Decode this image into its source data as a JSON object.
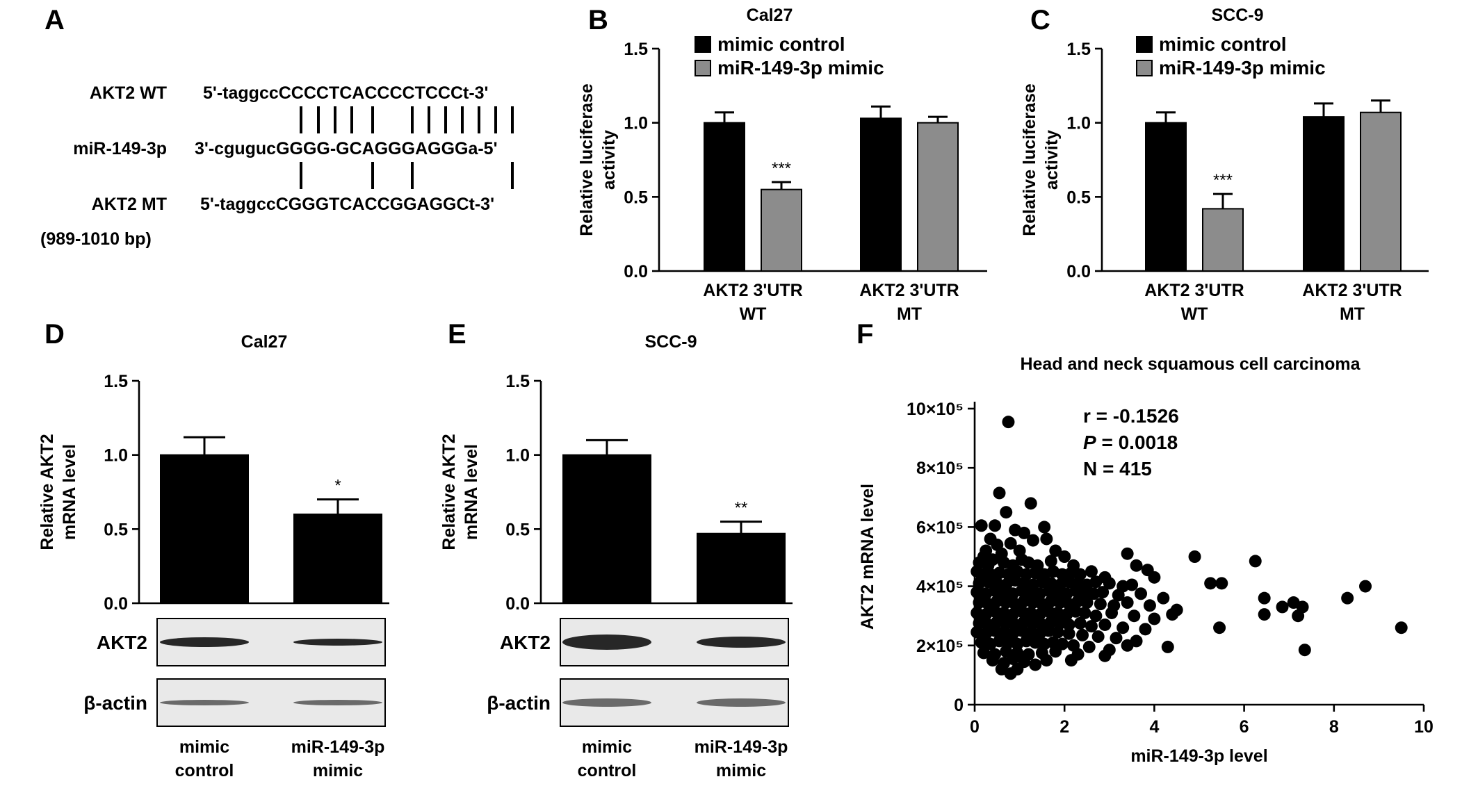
{
  "colors": {
    "control": "#000000",
    "mimic": "#8c8c8c",
    "text": "#000000"
  },
  "panels": {
    "A": {
      "letter": "A",
      "rows": [
        {
          "label": "AKT2 WT",
          "sequence": "5'-taggccCCCCTCACCCCTCCCt-3'"
        },
        {
          "label": "miR-149-3p",
          "sequence": "3'-cgugucGGGG-GCAGGGAGGGa-5'"
        },
        {
          "label": "AKT2 MT",
          "sequence": "5'-taggccCGGGTCACCGGAGGCt-3'"
        }
      ],
      "mt_range": "(989-1010 bp)"
    },
    "B": {
      "letter": "B"
    },
    "C": {
      "letter": "C"
    },
    "D": {
      "letter": "D",
      "blot_labels": [
        "AKT2",
        "β-actin"
      ],
      "xcat_lines": [
        [
          "mimic",
          "control"
        ],
        [
          "miR-149-3p",
          "mimic"
        ]
      ]
    },
    "E": {
      "letter": "E",
      "blot_labels": [
        "AKT2",
        "β-actin"
      ],
      "xcat_lines": [
        [
          "mimic",
          "control"
        ],
        [
          "miR-149-3p",
          "mimic"
        ]
      ]
    },
    "F": {
      "letter": "F",
      "stats": {
        "r": "r = -0.1526",
        "p_italic": "P",
        "p_value": " = 0.0018",
        "n": "N = 415"
      }
    }
  },
  "chart_data": [
    {
      "id": "B",
      "type": "bar",
      "title": "Cal27",
      "ylabel": [
        "Relative luciferase",
        "activity"
      ],
      "xlabel": "",
      "ylim": [
        0,
        1.5
      ],
      "yticks": [
        "0.0",
        "0.5",
        "1.0",
        "1.5"
      ],
      "categories": [
        [
          "AKT2 3'UTR",
          "WT"
        ],
        [
          "AKT2 3'UTR",
          "MT"
        ]
      ],
      "series": [
        {
          "name": "mimic control",
          "values": [
            1.0,
            1.03
          ],
          "err": [
            0.07,
            0.08
          ]
        },
        {
          "name": "miR-149-3p mimic",
          "values": [
            0.55,
            1.0
          ],
          "err": [
            0.05,
            0.04
          ]
        }
      ],
      "significance": [
        {
          "category": 0,
          "series": 1,
          "label": "***"
        }
      ],
      "legend": "top-left"
    },
    {
      "id": "C",
      "type": "bar",
      "title": "SCC-9",
      "ylabel": [
        "Relative luciferase",
        "activity"
      ],
      "xlabel": "",
      "ylim": [
        0,
        1.5
      ],
      "yticks": [
        "0.0",
        "0.5",
        "1.0",
        "1.5"
      ],
      "categories": [
        [
          "AKT2 3'UTR",
          "WT"
        ],
        [
          "AKT2 3'UTR",
          "MT"
        ]
      ],
      "series": [
        {
          "name": "mimic control",
          "values": [
            1.0,
            1.04
          ],
          "err": [
            0.07,
            0.09
          ]
        },
        {
          "name": "miR-149-3p mimic",
          "values": [
            0.42,
            1.07
          ],
          "err": [
            0.1,
            0.08
          ]
        }
      ],
      "significance": [
        {
          "category": 0,
          "series": 1,
          "label": "***"
        }
      ],
      "legend": "top-left"
    },
    {
      "id": "D",
      "type": "bar",
      "title": "Cal27",
      "ylabel": [
        "Relative AKT2",
        "mRNA level"
      ],
      "xlabel": "",
      "ylim": [
        0,
        1.5
      ],
      "yticks": [
        "0.0",
        "0.5",
        "1.0",
        "1.5"
      ],
      "categories": [
        "mimic control",
        "miR-149-3p mimic"
      ],
      "values": [
        1.0,
        0.6
      ],
      "err": [
        0.12,
        0.1
      ],
      "significance": [
        {
          "category": 1,
          "label": "*"
        }
      ]
    },
    {
      "id": "E",
      "type": "bar",
      "title": "SCC-9",
      "ylabel": [
        "Relative AKT2",
        "mRNA level"
      ],
      "xlabel": "",
      "ylim": [
        0,
        1.5
      ],
      "yticks": [
        "0.0",
        "0.5",
        "1.0",
        "1.5"
      ],
      "categories": [
        "mimic control",
        "miR-149-3p mimic"
      ],
      "values": [
        1.0,
        0.47
      ],
      "err": [
        0.1,
        0.08
      ],
      "significance": [
        {
          "category": 1,
          "label": "**"
        }
      ]
    },
    {
      "id": "F",
      "type": "scatter",
      "title": "Head and neck squamous cell carcinoma",
      "xlabel": "miR-149-3p level",
      "ylabel": "AKT2 mRNA level",
      "xlim": [
        0,
        10
      ],
      "ylim": [
        0,
        1000000
      ],
      "xticks": [
        "0",
        "2",
        "4",
        "6",
        "8",
        "10"
      ],
      "yticks": [
        "0",
        "2×10⁵",
        "4×10⁵",
        "6×10⁵",
        "8×10⁵",
        "10×10⁵"
      ],
      "points": [
        [
          0.75,
          955000
        ],
        [
          0.55,
          715000
        ],
        [
          0.45,
          605000
        ],
        [
          1.25,
          680000
        ],
        [
          0.7,
          650000
        ],
        [
          0.15,
          605000
        ],
        [
          0.35,
          560000
        ],
        [
          1.1,
          580000
        ],
        [
          1.55,
          600000
        ],
        [
          0.9,
          590000
        ],
        [
          0.25,
          520000
        ],
        [
          0.5,
          540000
        ],
        [
          0.8,
          545000
        ],
        [
          1.0,
          520000
        ],
        [
          1.3,
          555000
        ],
        [
          1.6,
          560000
        ],
        [
          2.0,
          500000
        ],
        [
          1.8,
          520000
        ],
        [
          0.6,
          510000
        ],
        [
          0.1,
          480000
        ],
        [
          0.2,
          500000
        ],
        [
          0.4,
          490000
        ],
        [
          0.3,
          470000
        ],
        [
          0.65,
          480000
        ],
        [
          0.85,
          470000
        ],
        [
          1.05,
          490000
        ],
        [
          1.2,
          480000
        ],
        [
          1.4,
          470000
        ],
        [
          1.7,
          485000
        ],
        [
          2.2,
          470000
        ],
        [
          0.05,
          450000
        ],
        [
          0.15,
          440000
        ],
        [
          0.35,
          440000
        ],
        [
          0.55,
          445000
        ],
        [
          0.75,
          440000
        ],
        [
          0.95,
          450000
        ],
        [
          1.15,
          440000
        ],
        [
          1.35,
          445000
        ],
        [
          1.55,
          440000
        ],
        [
          1.75,
          450000
        ],
        [
          1.95,
          440000
        ],
        [
          2.15,
          445000
        ],
        [
          2.35,
          440000
        ],
        [
          2.6,
          450000
        ],
        [
          2.9,
          430000
        ],
        [
          3.4,
          510000
        ],
        [
          3.6,
          470000
        ],
        [
          3.85,
          455000
        ],
        [
          4.0,
          430000
        ],
        [
          4.9,
          500000
        ],
        [
          5.5,
          410000
        ],
        [
          5.25,
          410000
        ],
        [
          6.25,
          485000
        ],
        [
          0.1,
          410000
        ],
        [
          0.3,
          415000
        ],
        [
          0.5,
          410000
        ],
        [
          0.7,
          405000
        ],
        [
          0.9,
          420000
        ],
        [
          1.1,
          410000
        ],
        [
          1.3,
          405000
        ],
        [
          1.5,
          415000
        ],
        [
          1.7,
          410000
        ],
        [
          1.9,
          405000
        ],
        [
          2.1,
          415000
        ],
        [
          2.3,
          410000
        ],
        [
          2.5,
          405000
        ],
        [
          2.7,
          415000
        ],
        [
          3.0,
          410000
        ],
        [
          3.3,
          400000
        ],
        [
          3.5,
          405000
        ],
        [
          0.05,
          380000
        ],
        [
          0.25,
          375000
        ],
        [
          0.45,
          385000
        ],
        [
          0.65,
          380000
        ],
        [
          0.85,
          375000
        ],
        [
          1.05,
          385000
        ],
        [
          1.25,
          380000
        ],
        [
          1.45,
          375000
        ],
        [
          1.65,
          385000
        ],
        [
          1.85,
          380000
        ],
        [
          2.05,
          375000
        ],
        [
          2.25,
          385000
        ],
        [
          2.45,
          380000
        ],
        [
          2.65,
          375000
        ],
        [
          2.85,
          380000
        ],
        [
          3.2,
          370000
        ],
        [
          3.7,
          375000
        ],
        [
          4.2,
          360000
        ],
        [
          8.7,
          400000
        ],
        [
          8.3,
          360000
        ],
        [
          6.45,
          360000
        ],
        [
          7.1,
          345000
        ],
        [
          7.3,
          330000
        ],
        [
          0.1,
          345000
        ],
        [
          0.3,
          340000
        ],
        [
          0.5,
          350000
        ],
        [
          0.7,
          345000
        ],
        [
          0.9,
          340000
        ],
        [
          1.1,
          350000
        ],
        [
          1.3,
          345000
        ],
        [
          1.5,
          340000
        ],
        [
          1.7,
          350000
        ],
        [
          1.9,
          345000
        ],
        [
          2.1,
          340000
        ],
        [
          2.3,
          350000
        ],
        [
          2.5,
          345000
        ],
        [
          2.8,
          340000
        ],
        [
          3.1,
          335000
        ],
        [
          3.4,
          345000
        ],
        [
          3.9,
          335000
        ],
        [
          4.5,
          320000
        ],
        [
          4.4,
          305000
        ],
        [
          6.85,
          330000
        ],
        [
          6.45,
          305000
        ],
        [
          7.2,
          300000
        ],
        [
          0.05,
          310000
        ],
        [
          0.25,
          305000
        ],
        [
          0.45,
          315000
        ],
        [
          0.65,
          310000
        ],
        [
          0.85,
          305000
        ],
        [
          1.05,
          315000
        ],
        [
          1.25,
          310000
        ],
        [
          1.45,
          305000
        ],
        [
          1.65,
          315000
        ],
        [
          1.85,
          310000
        ],
        [
          2.05,
          305000
        ],
        [
          2.25,
          315000
        ],
        [
          2.45,
          310000
        ],
        [
          2.7,
          300000
        ],
        [
          3.05,
          310000
        ],
        [
          3.55,
          300000
        ],
        [
          4.0,
          290000
        ],
        [
          0.1,
          275000
        ],
        [
          0.3,
          270000
        ],
        [
          0.5,
          280000
        ],
        [
          0.7,
          275000
        ],
        [
          0.9,
          270000
        ],
        [
          1.1,
          280000
        ],
        [
          1.3,
          275000
        ],
        [
          1.5,
          270000
        ],
        [
          1.7,
          280000
        ],
        [
          1.9,
          275000
        ],
        [
          2.1,
          270000
        ],
        [
          2.35,
          275000
        ],
        [
          2.6,
          265000
        ],
        [
          2.9,
          270000
        ],
        [
          3.3,
          260000
        ],
        [
          3.8,
          255000
        ],
        [
          5.45,
          260000
        ],
        [
          9.5,
          260000
        ],
        [
          0.05,
          245000
        ],
        [
          0.25,
          240000
        ],
        [
          0.45,
          250000
        ],
        [
          0.65,
          245000
        ],
        [
          0.85,
          240000
        ],
        [
          1.05,
          250000
        ],
        [
          1.25,
          245000
        ],
        [
          1.45,
          240000
        ],
        [
          1.65,
          250000
        ],
        [
          1.85,
          245000
        ],
        [
          2.1,
          240000
        ],
        [
          2.4,
          235000
        ],
        [
          2.75,
          230000
        ],
        [
          3.15,
          225000
        ],
        [
          3.6,
          215000
        ],
        [
          4.3,
          195000
        ],
        [
          7.35,
          185000
        ],
        [
          0.15,
          210000
        ],
        [
          0.35,
          205000
        ],
        [
          0.55,
          215000
        ],
        [
          0.75,
          210000
        ],
        [
          0.95,
          205000
        ],
        [
          1.15,
          215000
        ],
        [
          1.35,
          210000
        ],
        [
          1.55,
          205000
        ],
        [
          1.75,
          210000
        ],
        [
          1.95,
          205000
        ],
        [
          2.2,
          200000
        ],
        [
          2.55,
          195000
        ],
        [
          3.0,
          185000
        ],
        [
          3.4,
          200000
        ],
        [
          0.2,
          175000
        ],
        [
          0.45,
          170000
        ],
        [
          0.7,
          180000
        ],
        [
          0.95,
          175000
        ],
        [
          1.2,
          170000
        ],
        [
          1.5,
          175000
        ],
        [
          1.8,
          180000
        ],
        [
          2.3,
          170000
        ],
        [
          2.9,
          165000
        ],
        [
          0.4,
          150000
        ],
        [
          0.65,
          140000
        ],
        [
          0.85,
          155000
        ],
        [
          1.1,
          145000
        ],
        [
          1.6,
          150000
        ],
        [
          0.6,
          120000
        ],
        [
          0.95,
          120000
        ],
        [
          0.8,
          105000
        ],
        [
          1.35,
          135000
        ],
        [
          2.15,
          150000
        ]
      ]
    }
  ]
}
